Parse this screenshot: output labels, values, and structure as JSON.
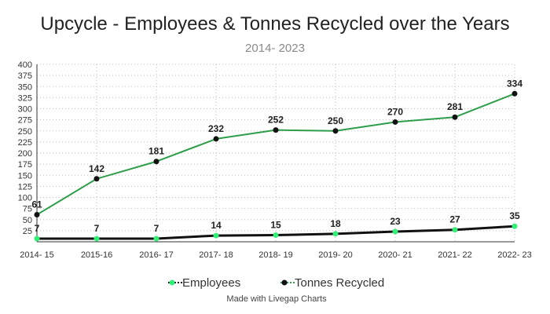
{
  "chart_data": {
    "type": "line",
    "title": "Upcycle - Employees & Tonnes Recycled over the Years",
    "subtitle": "2014- 2023",
    "categories": [
      "2014- 15",
      "2015-16",
      "2016- 17",
      "2017- 18",
      "2018- 19",
      "2019- 20",
      "2020- 21",
      "2021- 22",
      "2022- 23"
    ],
    "yticks": [
      "25",
      "50",
      "75",
      "100",
      "125",
      "150",
      "175",
      "200",
      "225",
      "250",
      "275",
      "300",
      "325",
      "350",
      "375",
      "400"
    ],
    "ylim": [
      0,
      400
    ],
    "grid": true,
    "legend_position": "bottom",
    "series": [
      {
        "name": "Employees",
        "values": [
          7,
          7,
          7,
          14,
          15,
          18,
          23,
          27,
          35
        ],
        "line_color": "#111111",
        "marker_color": "#33ee77"
      },
      {
        "name": "Tonnes Recycled",
        "values": [
          61,
          142,
          181,
          232,
          252,
          250,
          270,
          281,
          334
        ],
        "line_color": "#2e9e4a",
        "marker_color": "#111111"
      }
    ],
    "credit": "Made with Livegap Charts"
  }
}
